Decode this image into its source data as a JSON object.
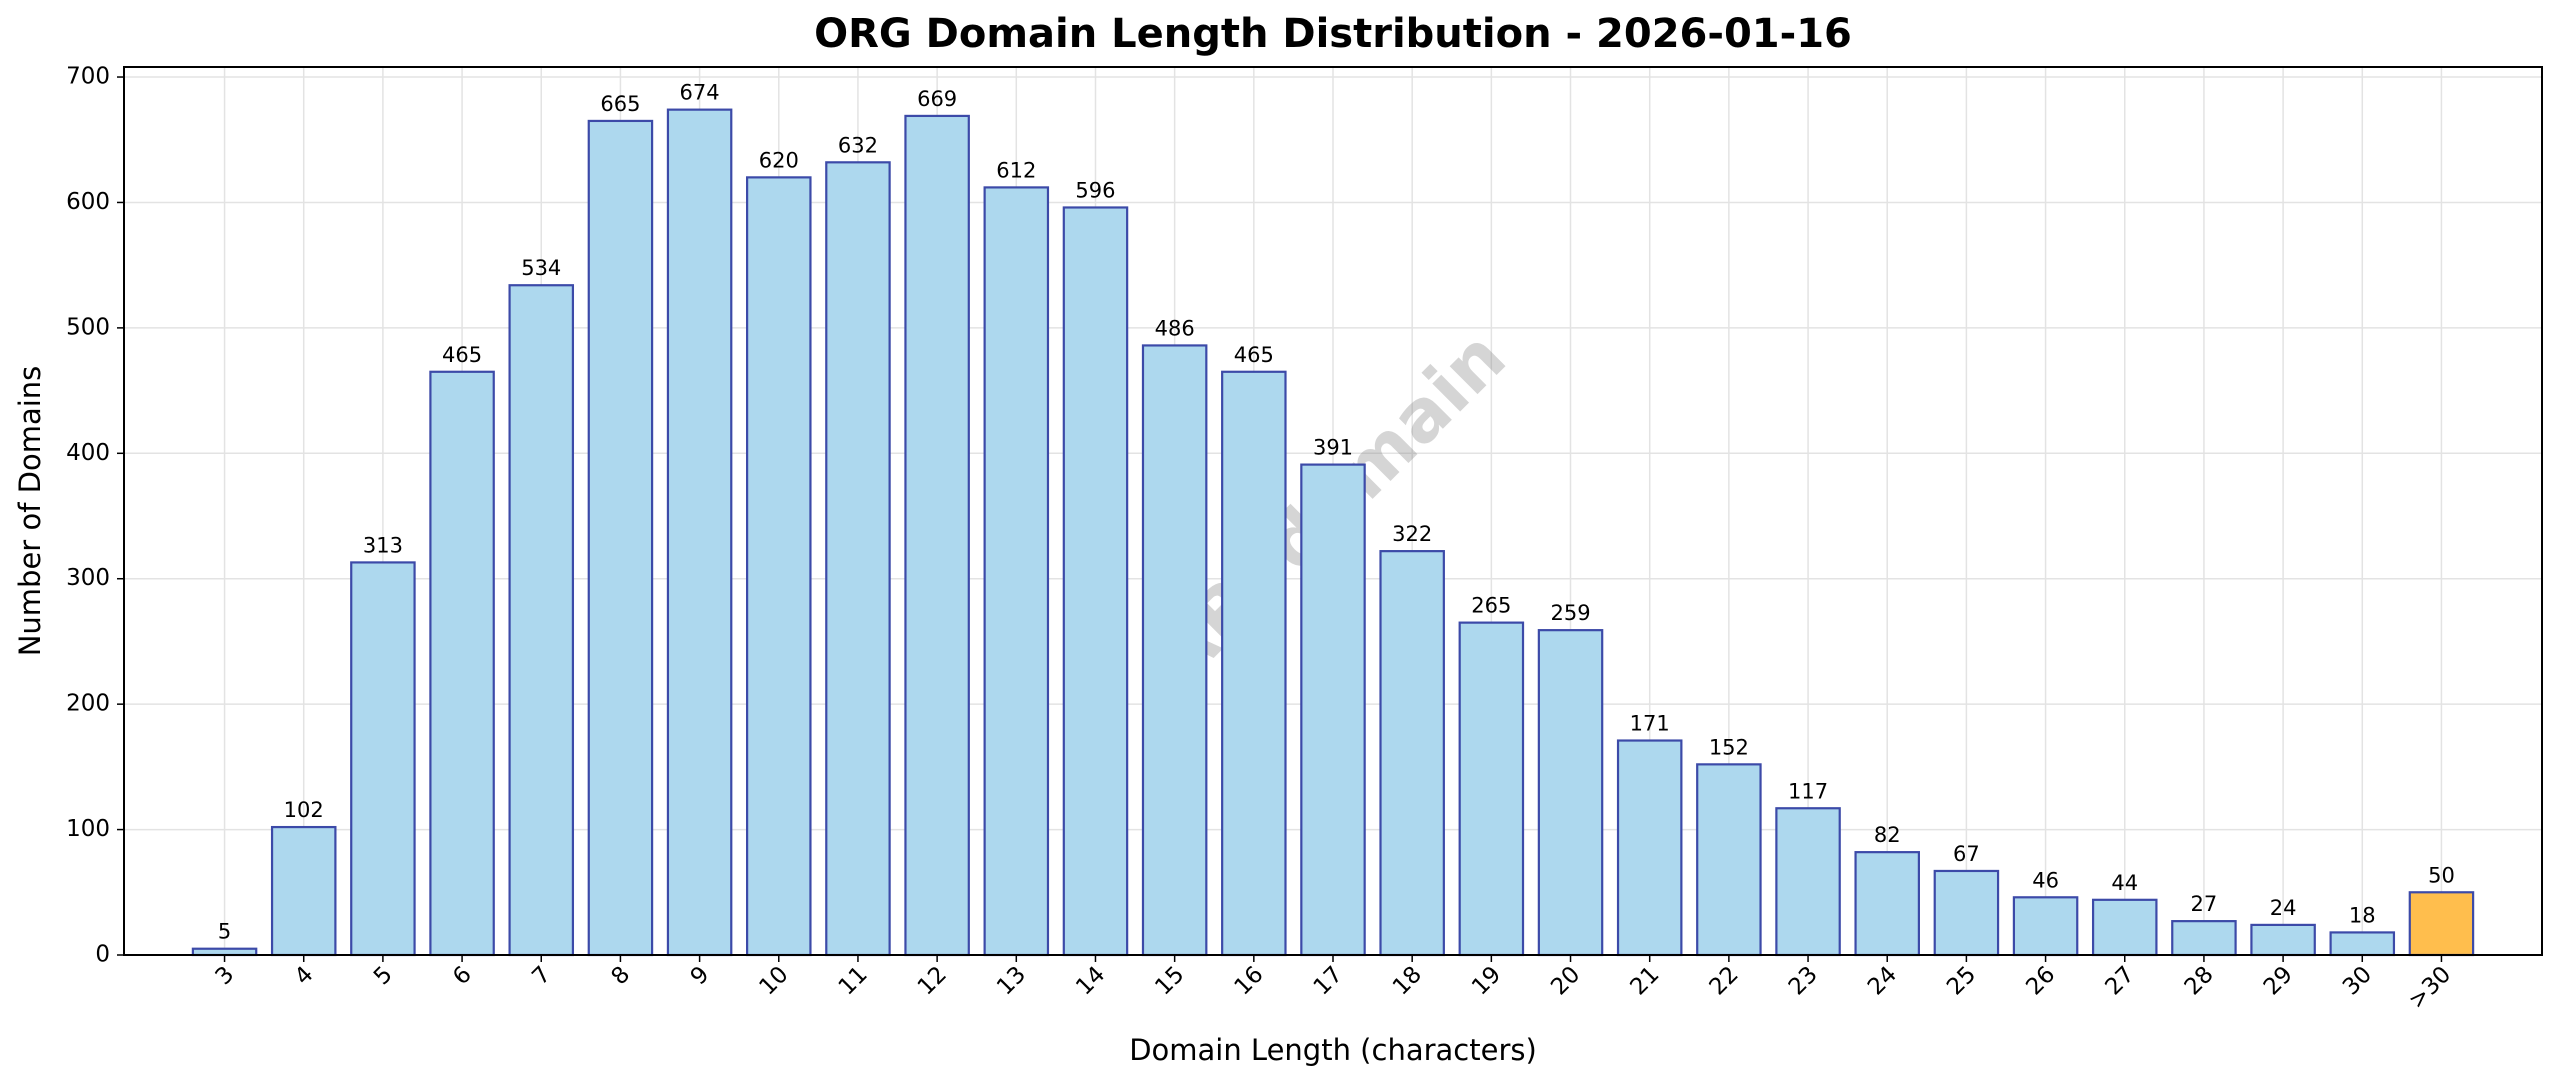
{
  "chart_data": {
    "type": "bar",
    "title": "ORG Domain Length Distribution - 2026-01-16",
    "xlabel": "Domain Length (characters)",
    "ylabel": "Number of Domains",
    "watermark": "ABTdomain",
    "categories": [
      "3",
      "4",
      "5",
      "6",
      "7",
      "8",
      "9",
      "10",
      "11",
      "12",
      "13",
      "14",
      "15",
      "16",
      "17",
      "18",
      "19",
      "20",
      "21",
      "22",
      "23",
      "24",
      "25",
      "26",
      "27",
      "28",
      "29",
      "30",
      ">30"
    ],
    "values": [
      5,
      102,
      313,
      465,
      534,
      665,
      674,
      620,
      632,
      669,
      612,
      596,
      486,
      465,
      391,
      322,
      265,
      259,
      171,
      152,
      117,
      82,
      67,
      46,
      44,
      27,
      24,
      18,
      50
    ],
    "colors": [
      "#add8ee",
      "#add8ee",
      "#add8ee",
      "#add8ee",
      "#add8ee",
      "#add8ee",
      "#add8ee",
      "#add8ee",
      "#add8ee",
      "#add8ee",
      "#add8ee",
      "#add8ee",
      "#add8ee",
      "#add8ee",
      "#add8ee",
      "#add8ee",
      "#add8ee",
      "#add8ee",
      "#add8ee",
      "#add8ee",
      "#add8ee",
      "#add8ee",
      "#add8ee",
      "#add8ee",
      "#add8ee",
      "#add8ee",
      "#add8ee",
      "#add8ee",
      "#ffbe4d"
    ],
    "edge_color": "#3c4aa8",
    "ylim": [
      0,
      708
    ],
    "yticks": [
      0,
      100,
      200,
      300,
      400,
      500,
      600,
      700
    ],
    "grid": true
  }
}
